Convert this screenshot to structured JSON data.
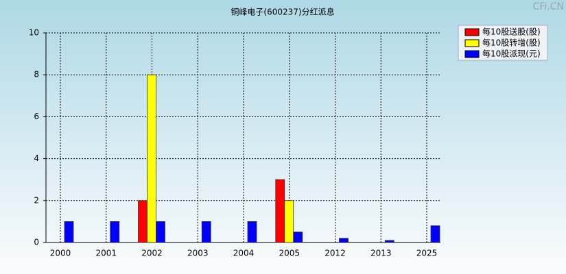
{
  "chart_data": {
    "type": "bar",
    "title": "铜峰电子(600237)分红派息",
    "watermark": "CFi.CN",
    "categories": [
      "2000",
      "2001",
      "2002",
      "2003",
      "2004",
      "2005",
      "2012",
      "2013",
      "2025"
    ],
    "series": [
      {
        "name": "每10股送股(股)",
        "color": "#ff0000",
        "values": [
          null,
          null,
          2,
          null,
          null,
          3,
          null,
          null,
          null
        ]
      },
      {
        "name": "每10股转增(股)",
        "color": "#ffff00",
        "values": [
          null,
          null,
          8,
          null,
          null,
          2,
          null,
          null,
          null
        ]
      },
      {
        "name": "每10股派现(元)",
        "color": "#0000ff",
        "values": [
          1,
          1,
          1,
          1,
          1,
          0.5,
          0.2,
          0.1,
          0.8
        ]
      }
    ],
    "ylim": [
      0,
      10
    ],
    "yticks": [
      0,
      2,
      4,
      6,
      8,
      10
    ],
    "grid": true,
    "legend": "top-right"
  }
}
